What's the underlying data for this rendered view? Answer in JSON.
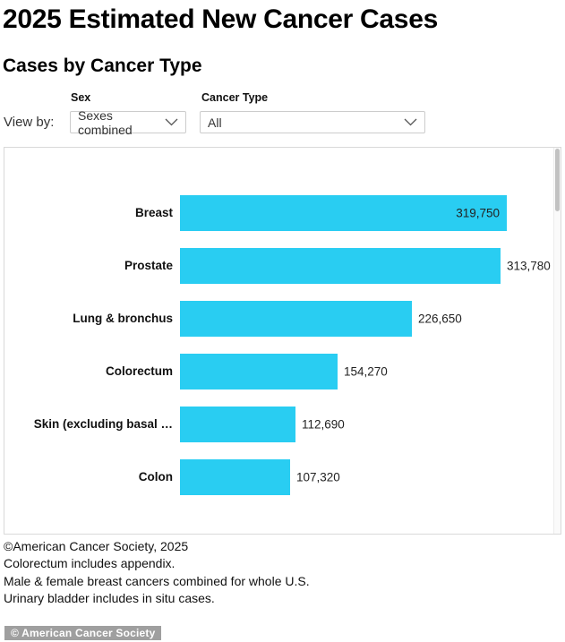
{
  "page": {
    "title": "2025 Estimated New Cancer Cases",
    "subtitle": "Cases by Cancer Type"
  },
  "controls": {
    "view_by_label": "View by:",
    "sex": {
      "label": "Sex",
      "selected": "Sexes combined",
      "icon": "chevron-down-icon"
    },
    "cancer_type": {
      "label": "Cancer Type",
      "selected": "All",
      "icon": "chevron-down-icon"
    }
  },
  "chart_data": {
    "type": "bar",
    "orientation": "horizontal",
    "title": "Cases by Cancer Type",
    "categories": [
      "Breast",
      "Prostate",
      "Lung & bronchus",
      "Colorectum",
      "Skin (excluding basal …",
      "Colon"
    ],
    "values": [
      319750,
      313780,
      226650,
      154270,
      112690,
      107320
    ],
    "value_labels": [
      "319,750",
      "313,780",
      "226,650",
      "154,270",
      "112,690",
      "107,320"
    ],
    "bar_color": "#29cdf2",
    "xlim": [
      0,
      350000
    ],
    "grid": false,
    "legend": false,
    "layout_hint": "category labels left, value labels at bar ends; longest bar label drawn inside bar"
  },
  "footnotes": [
    "©American Cancer Society, 2025",
    "Colorectum includes appendix.",
    "Male & female breast cancers combined for whole U.S.",
    "Urinary bladder includes in situ cases."
  ],
  "footer": {
    "badge": "© American Cancer Society"
  }
}
